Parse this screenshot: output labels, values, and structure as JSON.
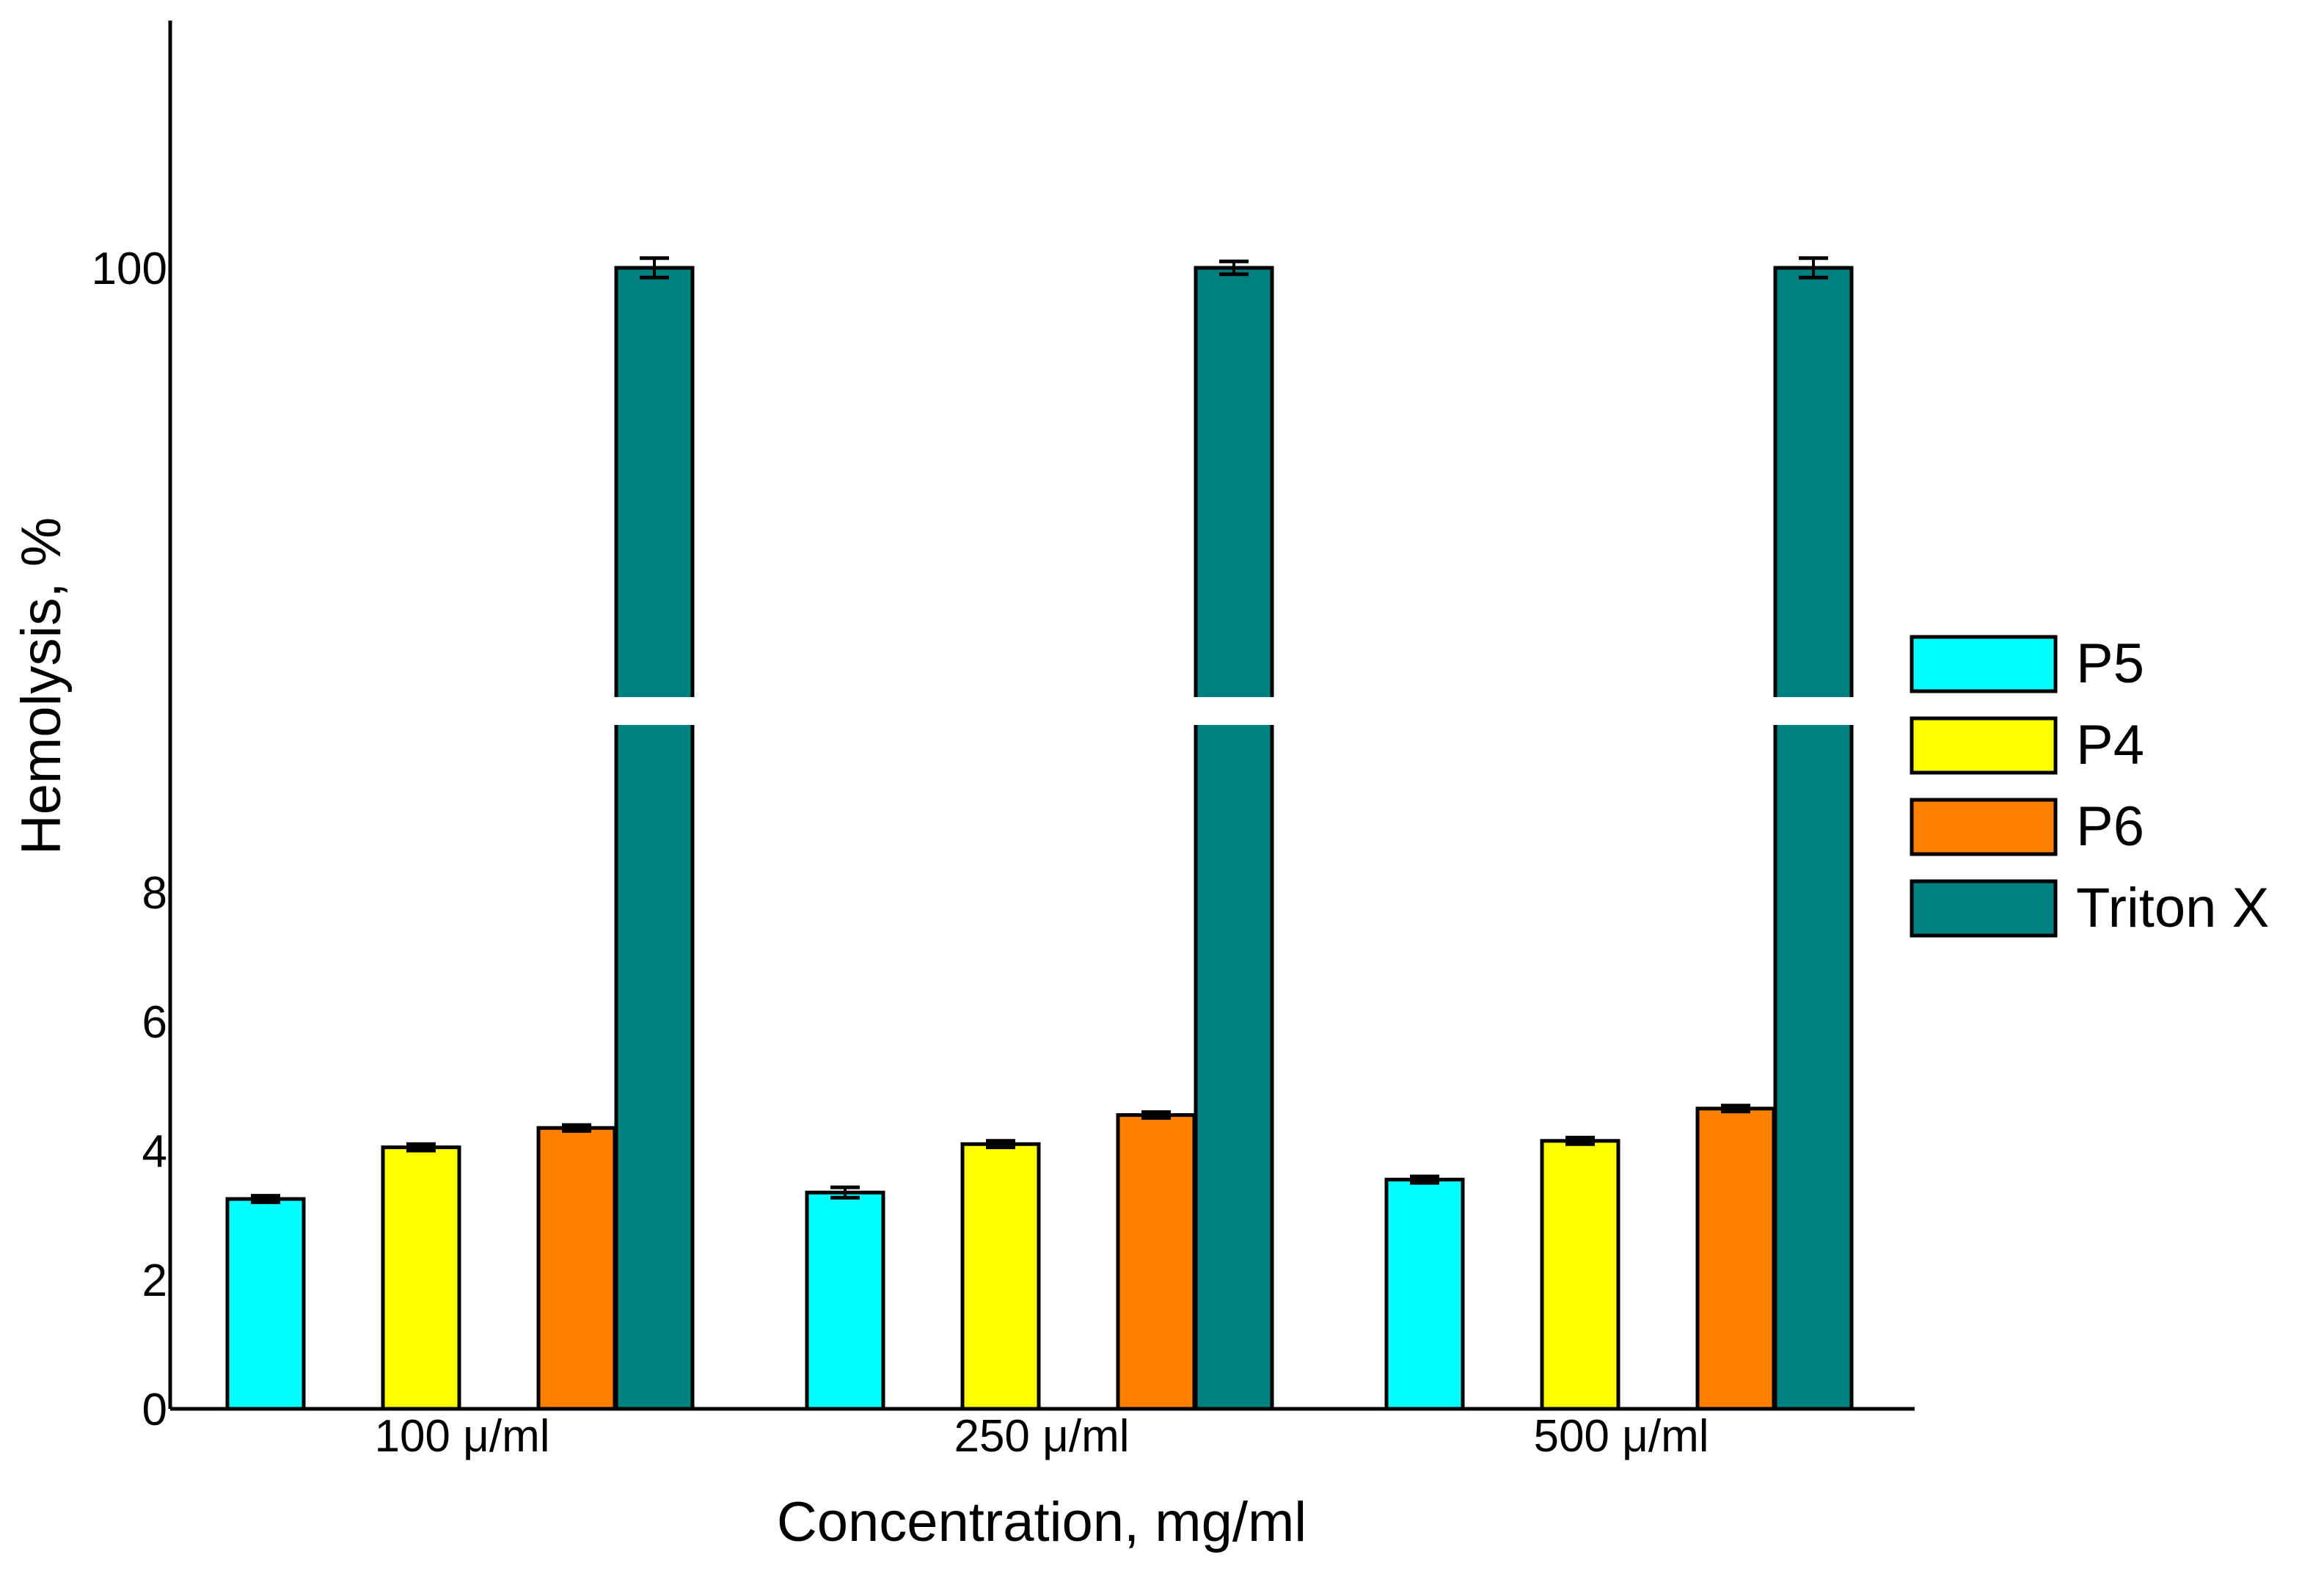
{
  "chart_data": {
    "type": "bar",
    "title": "",
    "xlabel": "Concentration, mg/ml",
    "ylabel": "Hemolysis, %",
    "categories": [
      "100 μ/ml",
      "250 μ/ml",
      "500 μ/ml"
    ],
    "y_ticks": [
      "0",
      "2",
      "4",
      "6",
      "8",
      "100"
    ],
    "y_axis_break": {
      "lower_range": [
        0,
        8
      ],
      "upper_value": 100
    },
    "series": [
      {
        "name": "P5",
        "color": "#00FFFF",
        "values": [
          3.25,
          3.35,
          3.55
        ],
        "errors": [
          0.05,
          0.08,
          0.05
        ]
      },
      {
        "name": "P4",
        "color": "#FFFF00",
        "values": [
          4.05,
          4.1,
          4.15
        ],
        "errors": [
          0.05,
          0.05,
          0.05
        ]
      },
      {
        "name": "P6",
        "color": "#FF8000",
        "values": [
          4.35,
          4.55,
          4.65
        ],
        "errors": [
          0.04,
          0.04,
          0.04
        ]
      },
      {
        "name": "Triton X",
        "color": "#008080",
        "values": [
          100,
          100,
          100
        ],
        "errors": [
          0.6,
          0.4,
          0.6
        ]
      }
    ],
    "legend_position": "right"
  }
}
